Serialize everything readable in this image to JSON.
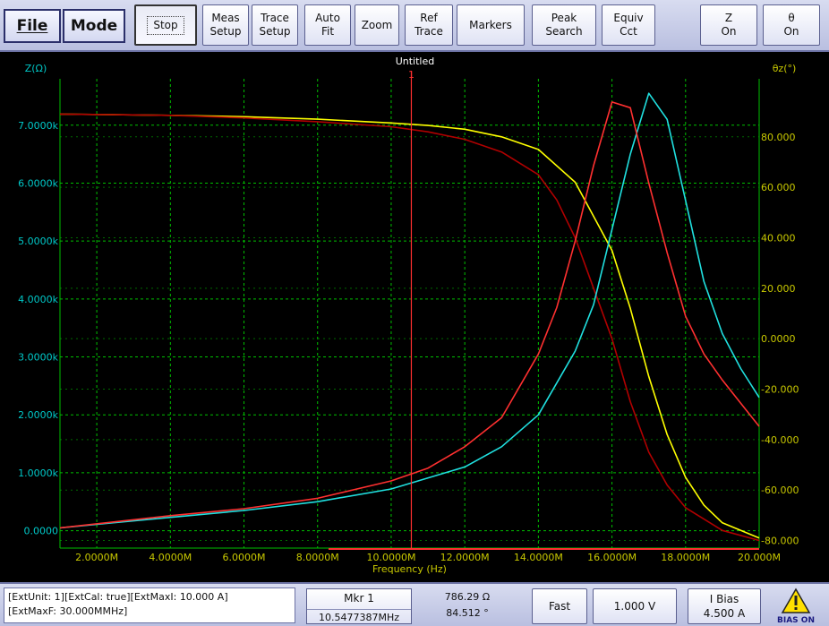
{
  "toolbar": {
    "file": "File",
    "mode": "Mode",
    "buttons": [
      {
        "line1": "Stop",
        "line2": ""
      },
      {
        "line1": "Meas",
        "line2": "Setup"
      },
      {
        "line1": "Trace",
        "line2": "Setup"
      },
      {
        "line1": "Auto",
        "line2": "Fit"
      },
      {
        "line1": "Zoom",
        "line2": ""
      },
      {
        "line1": "Ref",
        "line2": "Trace"
      },
      {
        "line1": "Markers",
        "line2": ""
      },
      {
        "line1": "Peak",
        "line2": "Search"
      },
      {
        "line1": "Equiv",
        "line2": "Cct"
      },
      {
        "line1": "Z",
        "line2": "On"
      },
      {
        "line1": "θ",
        "line2": "On"
      }
    ]
  },
  "plot": {
    "title": "Untitled",
    "marker_label": "1",
    "colors": {
      "grid": "#00c000",
      "axis_left": "#00c8c8",
      "axis_right": "#c8c800",
      "marker": "#ff3030",
      "trace_z_ref": "#b00000",
      "trace_theta_ref": "#ffff00",
      "trace_z": "#ff3030",
      "trace_cyan": "#20e0e0",
      "x_axis": "#c8c800"
    }
  },
  "chart_data": {
    "type": "line",
    "title": "Untitled",
    "xlabel": "Frequency (Hz)",
    "ylabel": "Z(Ω)",
    "y2label": "θz(°)",
    "xlim": [
      1000000,
      20000000
    ],
    "ylim": [
      -300,
      7800
    ],
    "y2lim": [
      -83,
      103
    ],
    "x_ticks": [
      "2.0000M",
      "4.0000M",
      "6.0000M",
      "8.0000M",
      "10.0000M",
      "12.0000M",
      "14.0000M",
      "16.0000M",
      "18.0000M",
      "20.000M"
    ],
    "x_tick_values": [
      2000000,
      4000000,
      6000000,
      8000000,
      10000000,
      12000000,
      14000000,
      16000000,
      18000000,
      20000000
    ],
    "y_ticks": [
      "0.0000",
      "1.0000k",
      "2.0000k",
      "3.0000k",
      "4.0000k",
      "5.0000k",
      "6.0000k",
      "7.0000k"
    ],
    "y_tick_values": [
      0,
      1000,
      2000,
      3000,
      4000,
      5000,
      6000,
      7000
    ],
    "y2_ticks": [
      "-80.000",
      "-60.000",
      "-40.000",
      "-20.000",
      "0.0000",
      "20.000",
      "40.000",
      "60.000",
      "80.000"
    ],
    "y2_tick_values": [
      -80,
      -60,
      -40,
      -20,
      0,
      20,
      40,
      60,
      80
    ],
    "grid": true,
    "marker_x": 10547738.7,
    "series": [
      {
        "axis": "y",
        "x": [
          1000000,
          4000000,
          6000000,
          8000000,
          10000000,
          11000000,
          12000000,
          13000000,
          14000000,
          14500000,
          15000000,
          15500000,
          16000000,
          16500000,
          17000000,
          17500000,
          18000000,
          18500000,
          19000000,
          19500000,
          20000000
        ],
        "values": [
          50,
          260,
          380,
          560,
          860,
          1080,
          1450,
          1950,
          3050,
          3850,
          5000,
          6300,
          7400,
          7300,
          6000,
          4800,
          3700,
          3050,
          2600,
          2200,
          1800
        ]
      },
      {
        "axis": "y",
        "x": [
          1000000,
          4000000,
          6000000,
          8000000,
          10000000,
          12000000,
          13000000,
          14000000,
          15000000,
          15500000,
          16000000,
          16500000,
          17000000,
          17500000,
          18000000,
          18500000,
          19000000,
          19500000,
          20000000
        ],
        "values": [
          50,
          230,
          350,
          500,
          720,
          1100,
          1450,
          2000,
          3100,
          3900,
          5200,
          6500,
          7550,
          7100,
          5700,
          4300,
          3400,
          2800,
          2300
        ]
      },
      {
        "axis": "y2",
        "x": [
          1000000,
          4000000,
          6000000,
          8000000,
          10000000,
          11000000,
          12000000,
          13000000,
          14000000,
          14500000,
          15000000,
          15500000,
          16000000,
          16500000,
          17000000,
          17500000,
          18000000,
          19000000,
          20000000
        ],
        "values": [
          89,
          88.5,
          87.5,
          86,
          84,
          82,
          79,
          74,
          65,
          55,
          40,
          20,
          0,
          -25,
          -45,
          -58,
          -67,
          -76,
          -80
        ]
      },
      {
        "axis": "y2",
        "x": [
          1000000,
          4000000,
          6000000,
          8000000,
          10000000,
          11000000,
          12000000,
          13000000,
          14000000,
          15000000,
          16000000,
          16500000,
          17000000,
          17500000,
          18000000,
          18500000,
          19000000,
          20000000
        ],
        "values": [
          89,
          88.5,
          88,
          87,
          85.5,
          84.5,
          83,
          80,
          75,
          62,
          35,
          12,
          -15,
          -38,
          -55,
          -66,
          -73,
          -79
        ]
      }
    ]
  },
  "status": {
    "ext_line1": "[ExtUnit: 1][ExtCal: true][ExtMaxI:  10.000 A]",
    "ext_line2": "[ExtMaxF:  30.000MMHz]",
    "mkr_label": "Mkr 1",
    "mkr_freq": "10.5477387MHz",
    "mkr_z": "786.29 Ω",
    "mkr_theta": "84.512 °",
    "speed": "Fast",
    "voltage": "1.000 V",
    "bias_line1": "I Bias",
    "bias_line2": "4.500 A",
    "bias_on": "BIAS ON"
  }
}
